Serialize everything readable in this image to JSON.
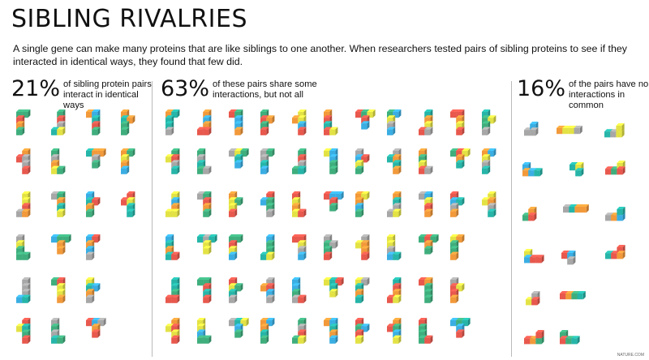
{
  "title": "SIBLING RIVALRIES",
  "subtitle": "A single gene can make many proteins that are like siblings to one another. When researchers tested pairs of sibling proteins to see if they interacted in identical ways, they found that few did.",
  "sections": [
    {
      "percent": "21%",
      "description": "of sibling protein pairs interact in identical ways",
      "fraction": 0.21
    },
    {
      "percent": "63%",
      "description": "of these pairs share some interactions, but not all",
      "fraction": 0.63
    },
    {
      "percent": "16%",
      "description": "of the pairs have no interactions in common",
      "fraction": 0.16
    }
  ],
  "palette": {
    "red": "#e8584d",
    "orange": "#f2993a",
    "yellow": "#e3e245",
    "green": "#3fae7d",
    "teal": "#26b5a8",
    "blue": "#3aaee3",
    "gray": "#a7a7a7"
  },
  "credit": "NATURE.COM"
}
